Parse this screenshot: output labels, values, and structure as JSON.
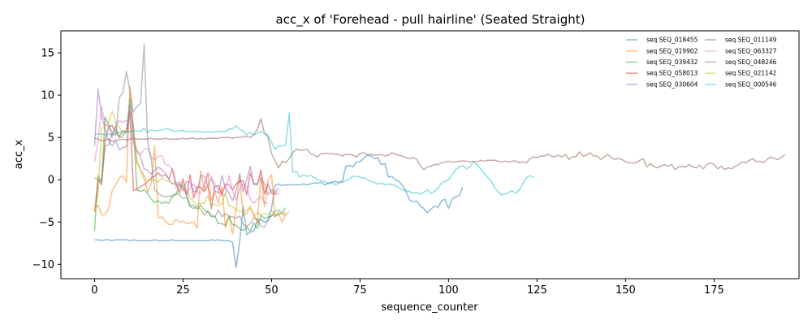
{
  "chart_data": {
    "type": "line",
    "title": "acc_x of 'Forehead - pull hairline' (Seated Straight)",
    "xlabel": "sequence_counter",
    "ylabel": "acc_x",
    "xlim": [
      -9.5,
      199
    ],
    "ylim": [
      -11.7,
      17.6
    ],
    "xticks": [
      0,
      25,
      50,
      75,
      100,
      125,
      150,
      175
    ],
    "yticks": [
      -10,
      -5,
      0,
      5,
      10,
      15
    ],
    "xtick_labels": [
      "0",
      "25",
      "50",
      "75",
      "100",
      "125",
      "150",
      "175"
    ],
    "ytick_labels": [
      "−10",
      "−5",
      "0",
      "5",
      "10",
      "15"
    ],
    "grid": false,
    "legend_position": "top-right",
    "series": [
      {
        "name": "seq SEQ_018455",
        "color": "#1f77b4",
        "x_start": 0,
        "x_step": 1,
        "values": [
          -7.1,
          -7.1,
          -7.2,
          -7.1,
          -7.1,
          -7.2,
          -7.1,
          -7.1,
          -7.1,
          -7.1,
          -7.2,
          -7.1,
          -7.2,
          -7.2,
          -7.2,
          -7.2,
          -7.2,
          -7.1,
          -7.2,
          -7.2,
          -7.2,
          -7.2,
          -7.1,
          -7.2,
          -7.2,
          -7.2,
          -7.2,
          -7.2,
          -7.2,
          -7.2,
          -7.2,
          -7.2,
          -7.2,
          -7.1,
          -7.2,
          -7.1,
          -7.2,
          -7.2,
          -7.2,
          -7.4,
          -10.4,
          -7.3,
          -3.2,
          -6.5,
          -6.2,
          -6.1,
          -4.8,
          -4.7,
          -5.0,
          -4.8,
          -3.4,
          -0.7,
          -0.5,
          -0.7,
          -0.6,
          -0.6,
          -0.6,
          -0.6,
          -0.6,
          -0.5,
          -0.6,
          -0.5,
          -0.4,
          -0.4,
          -0.3,
          -0.6,
          -0.4,
          -0.3,
          -0.2,
          -0.3,
          -0.2,
          1.6,
          1.7,
          1.5,
          2.1,
          2.1,
          2.5,
          2.9,
          2.8,
          2.5,
          2.6,
          1.8,
          1.9,
          0.3,
          0.4,
          0.0,
          -0.2,
          -0.7,
          -1.4,
          -2.4,
          -2.6,
          -2.5,
          -3.1,
          -3.4,
          -3.9,
          -3.5,
          -3.1,
          -3.3,
          -2.5,
          -2.3,
          -3.4,
          -2.3,
          -2.0,
          -1.9,
          -0.9
        ]
      },
      {
        "name": "seq SEQ_019902",
        "color": "#ff7f0e",
        "x_start": 0,
        "x_step": 1,
        "values": [
          -3.4,
          -3.0,
          -4.2,
          -4.1,
          -3.4,
          -1.3,
          -0.6,
          0.2,
          0.5,
          -0.3,
          11.0,
          6.0,
          2.0,
          1.2,
          0.5,
          -1.5,
          -0.5,
          4.0,
          -4.5,
          -4.4,
          -4.9,
          -5.3,
          -5.3,
          -4.7,
          -5.0,
          -4.9,
          -5.2,
          -5.1,
          -5.0,
          -5.7,
          1.1,
          -1.2,
          0.8,
          -2.4,
          -1.4,
          -2.8,
          -0.8,
          -5.7,
          -4.3,
          -6.4,
          -3.5,
          0.5,
          -4.3,
          -3.9,
          -3.4,
          -4.0,
          -5.2,
          0.5,
          -3.2,
          0.0,
          0.6,
          -4.4,
          -4.0,
          -5.0,
          -4.1,
          -3.8
        ]
      },
      {
        "name": "seq SEQ_039432",
        "color": "#2ca02c",
        "x_start": 0,
        "x_step": 1,
        "values": [
          -6.1,
          0.5,
          -0.3,
          7.4,
          6.5,
          5.5,
          6.3,
          4.9,
          5.2,
          5.7,
          9.6,
          6.0,
          -1.2,
          -1.4,
          -1.2,
          -1.6,
          -2.3,
          -2.7,
          -2.5,
          -2.8,
          -2.6,
          -2.8,
          -1.8,
          -1.8,
          -0.6,
          -0.9,
          -1.8,
          -3.1,
          -3.0,
          -3.5,
          -3.0,
          -3.6,
          -3.8,
          -4.4,
          -4.3,
          -5.2,
          -5.2,
          -5.4,
          -4.3,
          -5.3,
          -5.4,
          -5.8,
          -6.0,
          -5.6,
          -6.1,
          -5.1,
          -5.8,
          -4.2,
          -4.6,
          -4.4,
          -4.3,
          -3.7,
          -3.6,
          -3.9,
          -3.3
        ]
      },
      {
        "name": "seq SEQ_058013",
        "color": "#d62728",
        "x_start": 0,
        "x_step": 1,
        "values": [
          -3.8,
          0.0,
          -0.6,
          4.6,
          6.3,
          6.4,
          5.6,
          5.1,
          5.8,
          5.7,
          8.0,
          -1.3,
          -1.1,
          -0.8,
          -0.6,
          -0.2,
          0.2,
          0.4,
          0.8,
          0.4,
          0.6,
          0.1,
          1.3,
          -0.4,
          -1.6,
          0.1,
          -1.8,
          0.6,
          -2.2,
          -0.8,
          -0.9,
          -1.4,
          -0.6,
          -3.4,
          -0.8,
          -0.7,
          -1.7,
          -0.5,
          -0.6,
          -1.2,
          -0.5,
          -0.2,
          -0.1,
          -1.8,
          0.8,
          -0.4,
          -0.6,
          1.2,
          -1.7,
          -0.5,
          -1.6,
          -1.7,
          -1.6
        ]
      },
      {
        "name": "seq SEQ_030604",
        "color": "#9467bd",
        "x_start": 0,
        "x_step": 1,
        "values": [
          4.0,
          10.7,
          7.5,
          6.0,
          4.6,
          4.0,
          4.6,
          3.5,
          3.8,
          3.9,
          8.9,
          4.8,
          3.4,
          2.7,
          1.3,
          1.1,
          0.7,
          1.1,
          1.5,
          1.2,
          0.8,
          0.0,
          -0.5,
          -0.5,
          -0.6,
          -1.3,
          -0.2,
          -0.3,
          -1.4,
          -1.4,
          0.5,
          0.4,
          -0.6,
          0.2,
          -1.3,
          -1.6,
          0.5,
          -1.1,
          -1.6,
          -2.5,
          -1.3,
          0.7,
          -1.4,
          0.0,
          1.6,
          -0.6,
          -0.4,
          0.2,
          -0.5,
          -1.8,
          -1.2,
          -1.5,
          -1.0
        ]
      },
      {
        "name": "seq SEQ_011149",
        "color": "#8c564b",
        "x_start": 0,
        "x_step": 1,
        "values": [
          4.9,
          4.8,
          4.6,
          4.7,
          4.8,
          4.5,
          4.7,
          4.7,
          4.8,
          4.7,
          4.8,
          4.9,
          4.8,
          4.8,
          4.8,
          4.8,
          4.9,
          4.8,
          4.8,
          4.8,
          4.9,
          4.8,
          4.8,
          4.8,
          4.8,
          4.9,
          4.8,
          4.9,
          4.9,
          4.8,
          4.9,
          4.8,
          4.9,
          4.9,
          4.9,
          4.9,
          5.0,
          5.0,
          5.0,
          4.9,
          5.0,
          5.0,
          5.1,
          5.1,
          5.0,
          5.3,
          6.0,
          7.2,
          5.5,
          5.0,
          3.1,
          2.2,
          1.4,
          2.2,
          2.0,
          2.5,
          3.2,
          3.6,
          3.5,
          3.5,
          3.6,
          3.1,
          2.9,
          2.7,
          3.1,
          3.1,
          3.1,
          3.1,
          3.0,
          3.0,
          2.8,
          3.0,
          3.0,
          2.9,
          2.7,
          3.1,
          3.2,
          3.0,
          3.0,
          2.9,
          2.9,
          3.0,
          2.8,
          2.9,
          3.2,
          3.0,
          2.9,
          2.8,
          2.6,
          2.5,
          2.6,
          2.4,
          1.7,
          1.2,
          1.5,
          1.6,
          1.8,
          1.8,
          2.0,
          2.1,
          2.2,
          2.1,
          2.1,
          2.2,
          2.2,
          2.2,
          2.1,
          2.2,
          2.1,
          2.3,
          2.2,
          2.3,
          2.3,
          2.3,
          2.2,
          2.1,
          2.2,
          2.1,
          2.2,
          2.2,
          2.0,
          2.1,
          2.0,
          2.5,
          2.7,
          2.6,
          2.8,
          2.8,
          3.0,
          2.8,
          2.7,
          2.9,
          2.7,
          3.0,
          2.4,
          2.7,
          2.7,
          3.3,
          2.8,
          2.9,
          3.2,
          2.8,
          2.8,
          2.4,
          2.7,
          3.0,
          2.6,
          2.4,
          2.5,
          2.4,
          2.1,
          2.0,
          2.0,
          2.0,
          2.3,
          2.5,
          1.5,
          1.9,
          1.6,
          1.4,
          1.6,
          1.8,
          1.6,
          1.8,
          1.2,
          1.5,
          1.6,
          1.5,
          1.8,
          1.5,
          1.4,
          1.7,
          1.3,
          1.8,
          2.0,
          1.8,
          1.3,
          1.6,
          1.2,
          1.4,
          1.3,
          1.6,
          1.8,
          2.1,
          2.0,
          2.3,
          2.5,
          2.1,
          2.2,
          2.0,
          2.4,
          2.7,
          2.5,
          2.4,
          2.6,
          3.0
        ]
      },
      {
        "name": "seq SEQ_063327",
        "color": "#e377c2",
        "x_start": 0,
        "x_step": 1,
        "values": [
          2.1,
          4.6,
          8.7,
          6.5,
          6.3,
          5.0,
          6.5,
          7.0,
          6.8,
          7.0,
          7.0,
          4.2,
          3.5,
          3.0,
          3.6,
          3.7,
          2.6,
          2.4,
          2.7,
          2.9,
          1.8,
          1.7,
          1.2,
          -1.0,
          -0.2,
          -0.6,
          -1.9,
          -1.0,
          -0.5,
          -1.5,
          -1.7,
          -0.5,
          0.8,
          0.3,
          -0.5,
          -1.3,
          -1.9,
          -1.7,
          0.5,
          -1.3,
          -2.4,
          -1.2,
          -0.5,
          -0.8,
          -2.3,
          -2.8,
          -2.3,
          -2.0,
          -2.7,
          -2.8
        ]
      },
      {
        "name": "seq SEQ_048246",
        "color": "#7f7f7f",
        "x_start": 0,
        "x_step": 1,
        "values": [
          0.2,
          0.0,
          -0.1,
          4.0,
          4.1,
          5.5,
          5.2,
          9.7,
          10.3,
          12.8,
          10.5,
          8.0,
          8.7,
          9.0,
          16.0,
          4.5,
          2.5,
          -1.2,
          -1.6,
          -1.9,
          -2.0,
          -1.9,
          -2.1,
          -1.6,
          -1.8,
          -2.2,
          -2.1,
          -3.2,
          -3.4,
          -3.1,
          -3.5,
          -4.2,
          -3.7,
          -4.2,
          -4.4,
          -3.6,
          -4.4,
          -4.0,
          -4.3,
          -4.4,
          -4.5,
          -4.3,
          -5.3,
          -5.5,
          -5.2,
          -4.5,
          -4.7,
          -5.5,
          -5.6,
          -4.8,
          -4.2,
          -4.3,
          -4.1,
          -4.0,
          -4.2
        ]
      },
      {
        "name": "seq SEQ_021142",
        "color": "#bcbd22",
        "x_start": 0,
        "x_step": 1,
        "values": [
          -3.8,
          -1.7,
          6.1,
          6.3,
          6.9,
          8.1,
          6.7,
          6.2,
          5.5,
          5.8,
          5.7,
          5.9,
          2.2,
          1.1,
          0.0,
          0.0,
          -0.1,
          0.0,
          -0.3,
          0.2,
          -0.1,
          -0.2,
          -0.5,
          -0.3,
          -0.4,
          -0.8,
          -1.3,
          -2.1,
          -2.6,
          -2.9,
          -2.8,
          -2.8,
          -1.9,
          -3.0,
          -2.9,
          -3.1,
          -2.8,
          -1.6,
          -3.1,
          -3.2,
          -3.5,
          -3.8,
          -3.6,
          -3.7,
          -3.1,
          -4.4,
          -3.9,
          -4.1,
          -4.0,
          -4.1,
          -3.7,
          -4.1,
          -3.9,
          -4.0,
          -3.9
        ]
      },
      {
        "name": "seq SEQ_000546",
        "color": "#17becf",
        "x_start": 0,
        "x_step": 1,
        "values": [
          5.4,
          5.4,
          5.4,
          5.3,
          5.4,
          5.3,
          5.5,
          5.6,
          5.7,
          5.6,
          5.7,
          5.7,
          5.8,
          5.7,
          6.1,
          5.6,
          5.9,
          5.8,
          5.8,
          5.9,
          6.0,
          6.0,
          5.8,
          5.7,
          5.8,
          5.8,
          5.7,
          5.7,
          5.7,
          5.7,
          5.7,
          5.6,
          5.7,
          5.6,
          5.7,
          5.7,
          5.7,
          5.7,
          6.0,
          6.0,
          6.4,
          5.9,
          5.8,
          5.3,
          5.6,
          5.3,
          5.5,
          5.7,
          5.5,
          5.3,
          4.4,
          3.6,
          4.0,
          4.0,
          4.1,
          7.9,
          0.9,
          1.0,
          0.3,
          0.6,
          0.4,
          0.5,
          0.3,
          0.0,
          -0.1,
          -0.2,
          -0.5,
          -0.3,
          -0.6,
          -0.4,
          -0.3,
          -0.1,
          0.1,
          0.4,
          0.4,
          0.3,
          0.2,
          0.1,
          -0.2,
          -0.3,
          -0.5,
          -0.4,
          -0.6,
          -0.5,
          -0.6,
          -0.7,
          -1.0,
          -1.2,
          -1.3,
          -1.4,
          -1.6,
          -1.5,
          -1.7,
          -1.5,
          -1.2,
          -1.6,
          -1.4,
          -1.0,
          -0.4,
          -0.2,
          0.0,
          0.6,
          1.2,
          1.5,
          1.7,
          1.3,
          1.5,
          2.1,
          1.8,
          1.3,
          0.8,
          0.3,
          -0.1,
          -1.0,
          -1.4,
          -1.8,
          -1.7,
          -1.5,
          -1.3,
          -1.6,
          -1.2,
          -0.5,
          0.2,
          0.5,
          0.3
        ]
      }
    ]
  }
}
